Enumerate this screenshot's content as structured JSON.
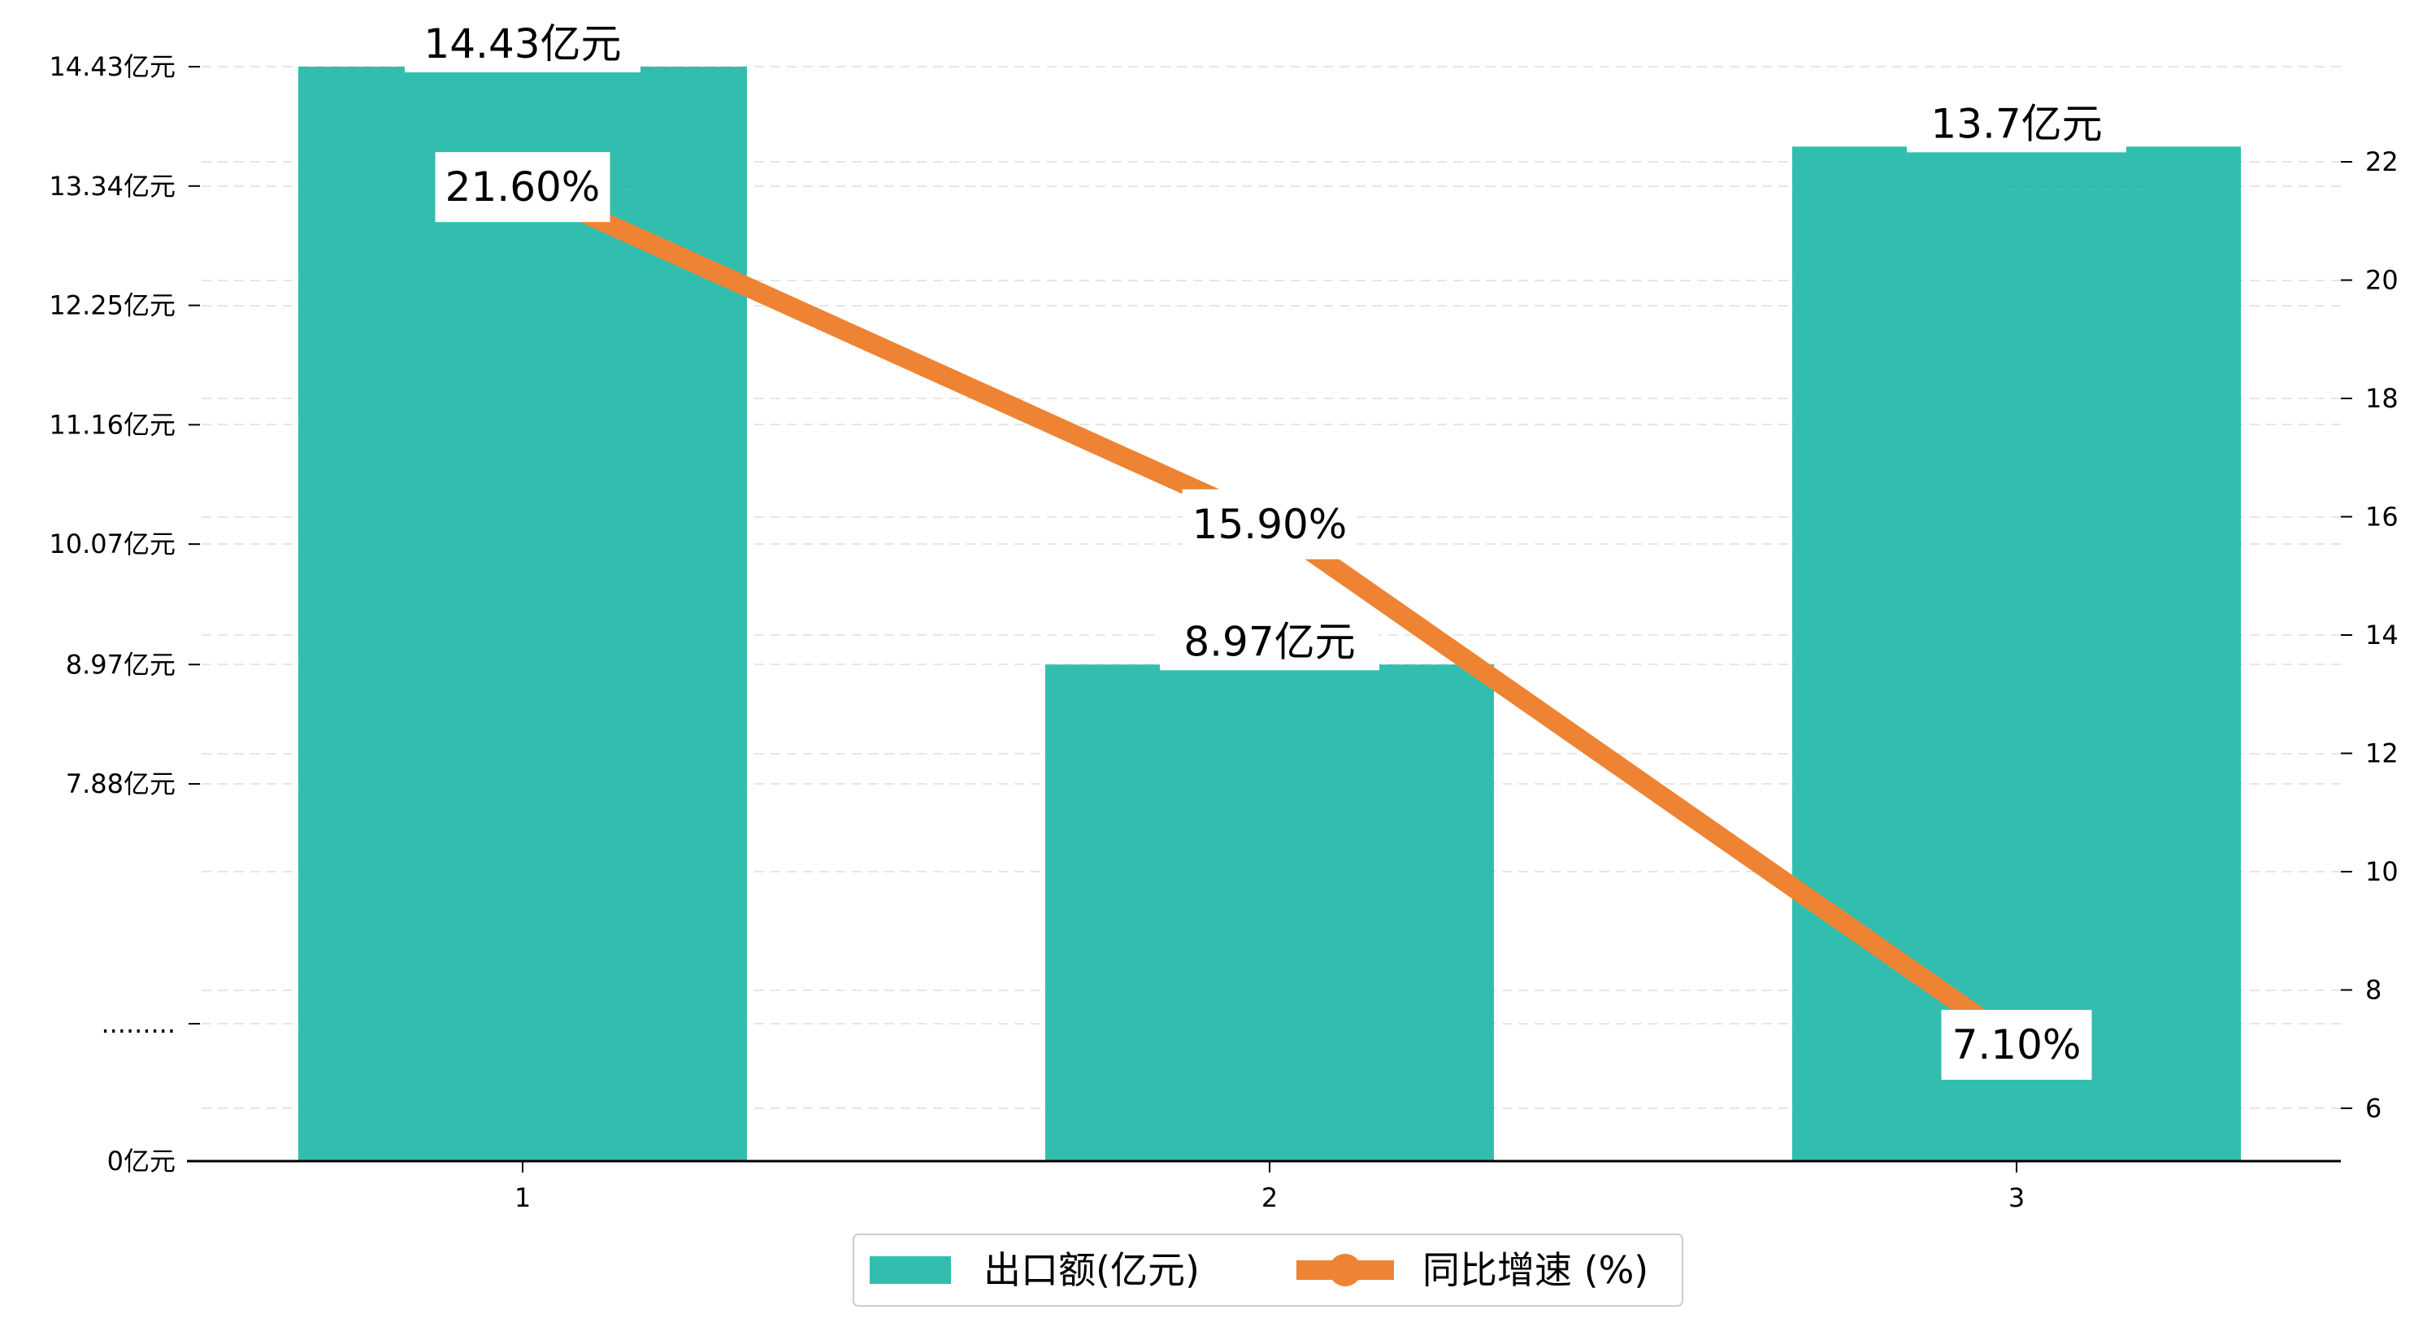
{
  "chart_data": {
    "type": "bar",
    "categories": [
      "1",
      "2",
      "3"
    ],
    "series": [
      {
        "name": "出口额(亿元)",
        "type": "bar",
        "axis": "left",
        "values": [
          14.43,
          8.97,
          13.7
        ],
        "labels": [
          "14.43亿元",
          "8.97亿元",
          "13.7亿元"
        ],
        "color": "#20B8A8"
      },
      {
        "name": "同比增速 (%)",
        "type": "line",
        "axis": "right",
        "values": [
          21.6,
          15.9,
          7.1
        ],
        "labels": [
          "21.60%",
          "15.90%",
          "7.10%"
        ],
        "color": "#EE8333"
      }
    ],
    "y_left": {
      "ticks": [
        {
          "value": 0,
          "label": "0亿元"
        },
        {
          "value": 5.69,
          "label": "........."
        },
        {
          "value": 7.88,
          "label": "7.88亿元"
        },
        {
          "value": 8.97,
          "label": "8.97亿元"
        },
        {
          "value": 10.07,
          "label": "10.07亿元"
        },
        {
          "value": 11.16,
          "label": "11.16亿元"
        },
        {
          "value": 12.25,
          "label": "12.25亿元"
        },
        {
          "value": 13.34,
          "label": "13.34亿元"
        },
        {
          "value": 14.43,
          "label": "14.43亿元"
        }
      ],
      "broken_axis": true
    },
    "y_right": {
      "ticks": [
        6,
        8,
        10,
        12,
        14,
        16,
        18,
        20,
        22
      ],
      "ylim": [
        5.1,
        24.1
      ]
    },
    "grid": "horizontal dashed",
    "legend_position": "bottom-center"
  }
}
